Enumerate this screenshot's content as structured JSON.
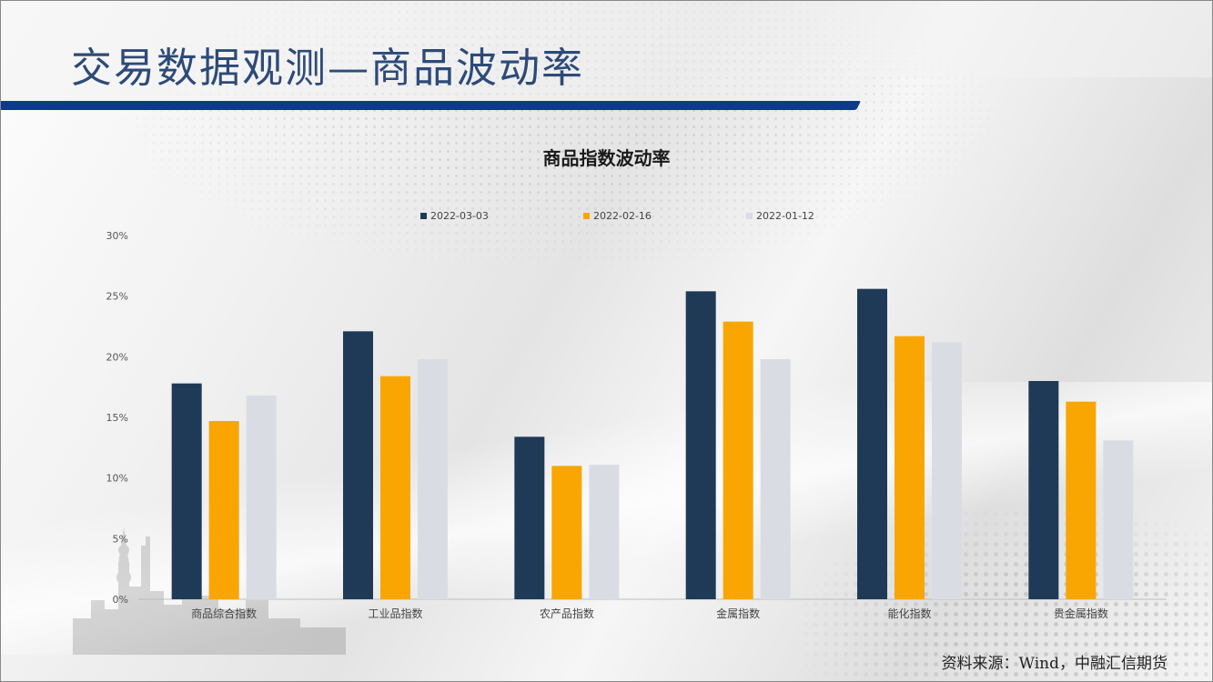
{
  "page": {
    "title": "交易数据观测—商品波动率",
    "source": "资料来源：Wind，中融汇信期货"
  },
  "colors": {
    "header_bar": "#0f3a87",
    "title_text": "#2d4a78"
  },
  "chart_data": {
    "type": "bar",
    "title": "商品指数波动率",
    "categories": [
      "商品综合指数",
      "工业品指数",
      "农产品指数",
      "金属指数",
      "能化指数",
      "贵金属指数"
    ],
    "series": [
      {
        "name": "2022-03-03",
        "color": "#1f3a56",
        "values": [
          17.8,
          22.1,
          13.4,
          25.4,
          25.6,
          18.0
        ]
      },
      {
        "name": "2022-02-16",
        "color": "#f9a602",
        "values": [
          14.7,
          18.4,
          11.0,
          22.9,
          21.7,
          16.3
        ]
      },
      {
        "name": "2022-01-12",
        "color": "#d9dde3",
        "values": [
          16.8,
          19.8,
          11.1,
          19.8,
          21.2,
          13.1
        ]
      }
    ],
    "ylim": [
      0,
      30
    ],
    "yticks": [
      "0%",
      "5%",
      "10%",
      "15%",
      "20%",
      "25%",
      "30%"
    ],
    "ytick_values": [
      0,
      5,
      10,
      15,
      20,
      25,
      30
    ],
    "legend_position": "top",
    "grid": false
  }
}
